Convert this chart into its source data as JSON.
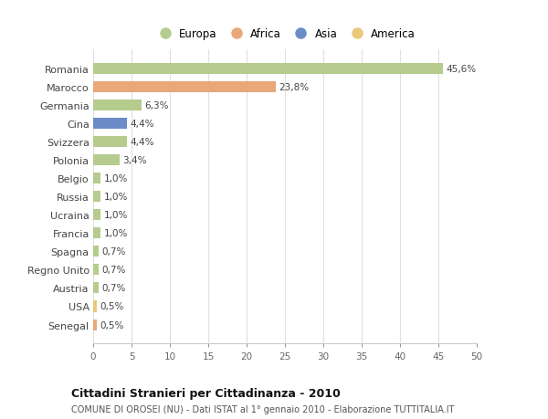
{
  "countries": [
    "Romania",
    "Marocco",
    "Germania",
    "Cina",
    "Svizzera",
    "Polonia",
    "Belgio",
    "Russia",
    "Ucraina",
    "Francia",
    "Spagna",
    "Regno Unito",
    "Austria",
    "USA",
    "Senegal"
  ],
  "values": [
    45.6,
    23.8,
    6.3,
    4.4,
    4.4,
    3.4,
    1.0,
    1.0,
    1.0,
    1.0,
    0.7,
    0.7,
    0.7,
    0.5,
    0.5
  ],
  "labels": [
    "45,6%",
    "23,8%",
    "6,3%",
    "4,4%",
    "4,4%",
    "3,4%",
    "1,0%",
    "1,0%",
    "1,0%",
    "1,0%",
    "0,7%",
    "0,7%",
    "0,7%",
    "0,5%",
    "0,5%"
  ],
  "colors": [
    "#b5cc8e",
    "#e8a878",
    "#b5cc8e",
    "#6b8cc7",
    "#b5cc8e",
    "#b5cc8e",
    "#b5cc8e",
    "#b5cc8e",
    "#b5cc8e",
    "#b5cc8e",
    "#b5cc8e",
    "#b5cc8e",
    "#b5cc8e",
    "#e8c87a",
    "#e8a878"
  ],
  "legend": [
    {
      "label": "Europa",
      "color": "#b5cc8e"
    },
    {
      "label": "Africa",
      "color": "#e8a878"
    },
    {
      "label": "Asia",
      "color": "#6b8cc7"
    },
    {
      "label": "America",
      "color": "#e8c87a"
    }
  ],
  "xlim": [
    0,
    50
  ],
  "xticks": [
    0,
    5,
    10,
    15,
    20,
    25,
    30,
    35,
    40,
    45,
    50
  ],
  "title": "Cittadini Stranieri per Cittadinanza - 2010",
  "subtitle": "COMUNE DI OROSEI (NU) - Dati ISTAT al 1° gennaio 2010 - Elaborazione TUTTITALIA.IT",
  "bg_color": "#ffffff",
  "grid_color": "#e0e0e0",
  "bar_height": 0.6
}
